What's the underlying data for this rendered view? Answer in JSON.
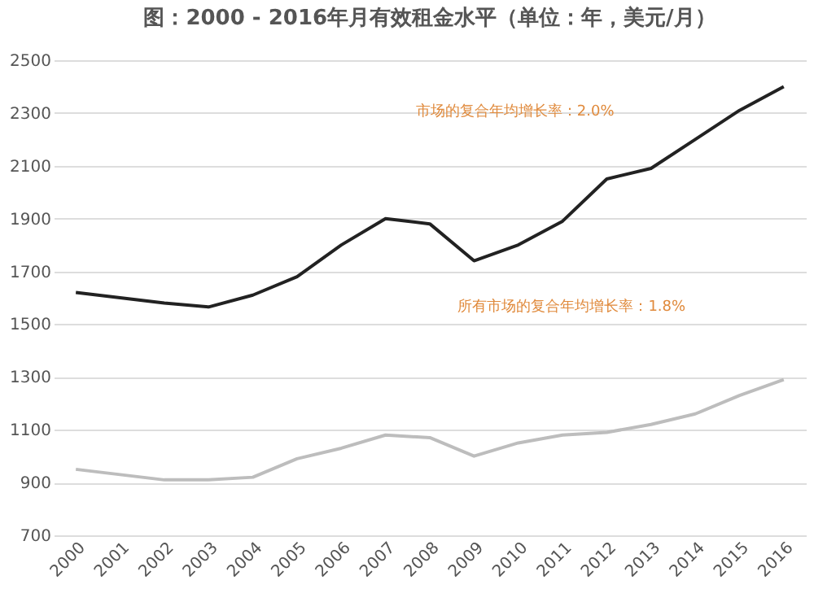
{
  "chart_data": {
    "type": "line",
    "title": "图：2000 - 2016年月有效租金水平（单位：年，美元/月）",
    "categories": [
      "2000",
      "2001",
      "2002",
      "2003",
      "2004",
      "2005",
      "2006",
      "2007",
      "2008",
      "2009",
      "2010",
      "2011",
      "2012",
      "2013",
      "2014",
      "2015",
      "2016"
    ],
    "series": [
      {
        "color": "#222222",
        "values": [
          1620,
          1600,
          1580,
          1565,
          1610,
          1680,
          1800,
          1900,
          1880,
          1740,
          1800,
          1890,
          2050,
          2090,
          2200,
          2310,
          2400
        ]
      },
      {
        "color": "#bdbdbd",
        "values": [
          950,
          930,
          910,
          910,
          920,
          990,
          1030,
          1080,
          1070,
          1000,
          1050,
          1080,
          1090,
          1120,
          1160,
          1230,
          1290
        ]
      }
    ],
    "annotations": [
      "市场的复合年均增长率：2.0%",
      "所有市场的复合年均增长率：1.8%"
    ],
    "ylim": [
      700,
      2500
    ],
    "yticks": [
      700,
      900,
      1100,
      1300,
      1500,
      1700,
      1900,
      2100,
      2300,
      2500
    ],
    "grid": "y",
    "marker": "none",
    "line_style": "solid"
  }
}
